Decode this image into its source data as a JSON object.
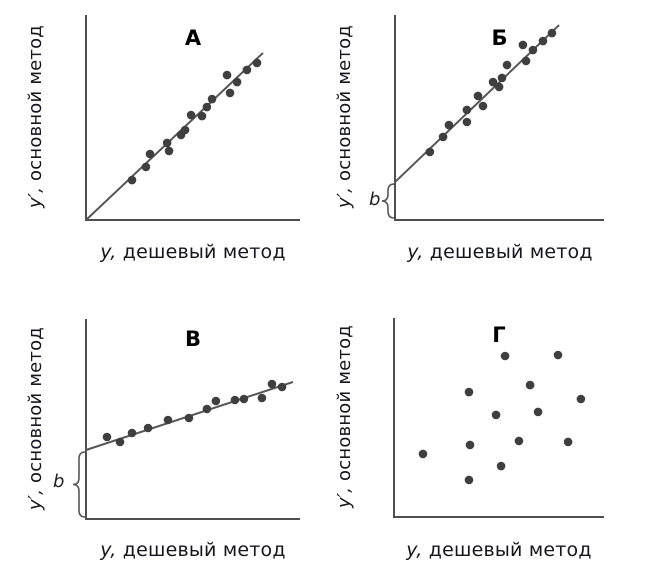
{
  "figure": {
    "background": "#ffffff",
    "dot_color": "#3f3f3f",
    "line_color": "#565656",
    "axis_color": "#4f4f4f",
    "text_color": "#15151f"
  },
  "labels": {
    "y_axis": "y′, основной метод",
    "x_axis": "y, дешевый метод",
    "intercept": "b"
  },
  "chart_data": [
    {
      "type": "scatter",
      "title": "А",
      "xlabel": "y, дешевый метод",
      "ylabel": "y′, основной метод",
      "xlim": [
        0,
        1
      ],
      "ylim": [
        0,
        1
      ],
      "axis_ticks": "none",
      "fit_line": {
        "x": [
          0,
          0.827
        ],
        "y": [
          0,
          0.815
        ]
      },
      "intercept": null,
      "points": [
        [
          0.215,
          0.195
        ],
        [
          0.28,
          0.259
        ],
        [
          0.299,
          0.322
        ],
        [
          0.388,
          0.337
        ],
        [
          0.379,
          0.376
        ],
        [
          0.444,
          0.415
        ],
        [
          0.463,
          0.439
        ],
        [
          0.491,
          0.512
        ],
        [
          0.542,
          0.507
        ],
        [
          0.565,
          0.551
        ],
        [
          0.589,
          0.59
        ],
        [
          0.673,
          0.62
        ],
        [
          0.706,
          0.673
        ],
        [
          0.659,
          0.707
        ],
        [
          0.752,
          0.732
        ],
        [
          0.799,
          0.766
        ]
      ]
    },
    {
      "type": "scatter",
      "title": "Б",
      "xlabel": "y, дешевый метод",
      "ylabel": "y′, основной метод",
      "xlim": [
        0,
        1
      ],
      "ylim": [
        0,
        1
      ],
      "axis_ticks": "none",
      "fit_line": {
        "x": [
          0,
          0.785
        ],
        "y": [
          0.185,
          0.951
        ]
      },
      "intercept": {
        "value": 0.185,
        "label": "b"
      },
      "points": [
        [
          0.167,
          0.332
        ],
        [
          0.23,
          0.405
        ],
        [
          0.258,
          0.463
        ],
        [
          0.344,
          0.478
        ],
        [
          0.344,
          0.537
        ],
        [
          0.397,
          0.605
        ],
        [
          0.421,
          0.556
        ],
        [
          0.469,
          0.673
        ],
        [
          0.498,
          0.649
        ],
        [
          0.512,
          0.693
        ],
        [
          0.536,
          0.756
        ],
        [
          0.612,
          0.854
        ],
        [
          0.627,
          0.776
        ],
        [
          0.66,
          0.829
        ],
        [
          0.708,
          0.873
        ],
        [
          0.751,
          0.912
        ]
      ]
    },
    {
      "type": "scatter",
      "title": "В",
      "xlabel": "y, дешевый метод",
      "ylabel": "y′, основной метод",
      "xlim": [
        0,
        1
      ],
      "ylim": [
        0,
        1
      ],
      "axis_ticks": "none",
      "fit_line": {
        "x": [
          0,
          0.967
        ],
        "y": [
          0.345,
          0.685
        ]
      },
      "intercept": {
        "value": 0.345,
        "label": "b"
      },
      "points": [
        [
          0.098,
          0.41
        ],
        [
          0.159,
          0.385
        ],
        [
          0.215,
          0.43
        ],
        [
          0.29,
          0.455
        ],
        [
          0.383,
          0.495
        ],
        [
          0.481,
          0.505
        ],
        [
          0.565,
          0.55
        ],
        [
          0.607,
          0.59
        ],
        [
          0.696,
          0.595
        ],
        [
          0.738,
          0.6
        ],
        [
          0.822,
          0.605
        ],
        [
          0.869,
          0.675
        ],
        [
          0.916,
          0.66
        ]
      ]
    },
    {
      "type": "scatter",
      "title": "Г",
      "xlabel": "y, дешевый метод",
      "ylabel": "y′, основной метод",
      "xlim": [
        0,
        1
      ],
      "ylim": [
        0,
        1
      ],
      "axis_ticks": "none",
      "fit_line": null,
      "intercept": null,
      "points": [
        [
          0.529,
          0.809
        ],
        [
          0.781,
          0.814
        ],
        [
          0.648,
          0.663
        ],
        [
          0.357,
          0.628
        ],
        [
          0.89,
          0.593
        ],
        [
          0.486,
          0.513
        ],
        [
          0.686,
          0.528
        ],
        [
          0.595,
          0.382
        ],
        [
          0.829,
          0.377
        ],
        [
          0.362,
          0.362
        ],
        [
          0.138,
          0.317
        ],
        [
          0.51,
          0.256
        ],
        [
          0.357,
          0.186
        ]
      ]
    }
  ]
}
